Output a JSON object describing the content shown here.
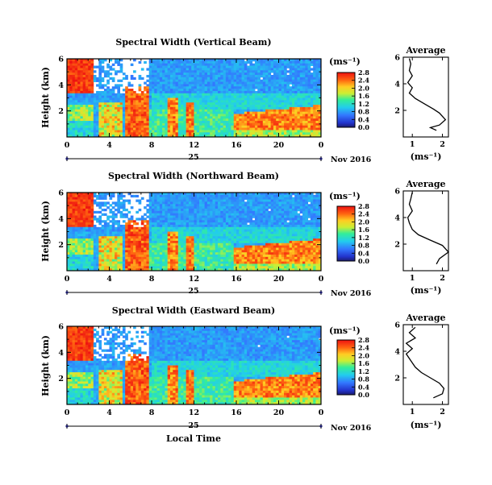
{
  "figure": {
    "xlabel": "Local Time",
    "date_label": "Nov 2016",
    "day_label": "25",
    "colorbar_unit": "(ms⁻¹)",
    "avg_title": "Average",
    "avg_xlabel": "(ms⁻¹)"
  },
  "chart_data": [
    {
      "type": "heatmap",
      "title": "Spectral Width (Vertical Beam)",
      "ylabel": "Height (km)",
      "xlim": [
        0,
        24
      ],
      "ylim": [
        0,
        6
      ],
      "x_ticks": [
        "0",
        "4",
        "8",
        "12",
        "16",
        "20",
        "0"
      ],
      "y_ticks": [
        "2",
        "4",
        "6"
      ],
      "colorbar_ticks": [
        "0.0",
        "0.4",
        "0.8",
        "1.2",
        "1.6",
        "2.0",
        "2.4",
        "2.8"
      ],
      "colorbar_range": [
        0,
        2.8
      ],
      "average_profile": {
        "x_ticks": [
          "1",
          "2"
        ],
        "xlim": [
          0.7,
          2.2
        ],
        "y_ticks": [
          "2",
          "4",
          "6"
        ],
        "points": [
          [
            1.8,
            0.5
          ],
          [
            1.6,
            0.7
          ],
          [
            1.9,
            0.9
          ],
          [
            2.1,
            1.3
          ],
          [
            1.9,
            1.8
          ],
          [
            1.7,
            2.1
          ],
          [
            1.4,
            2.5
          ],
          [
            1.1,
            2.9
          ],
          [
            0.9,
            3.3
          ],
          [
            1.0,
            3.7
          ],
          [
            0.85,
            4.1
          ],
          [
            1.0,
            4.6
          ],
          [
            0.9,
            5.0
          ],
          [
            0.95,
            5.5
          ],
          [
            0.9,
            5.9
          ]
        ]
      }
    },
    {
      "type": "heatmap",
      "title": "Spectral Width (Northward Beam)",
      "ylabel": "Height (km)",
      "xlim": [
        0,
        24
      ],
      "ylim": [
        0,
        6
      ],
      "x_ticks": [
        "0",
        "4",
        "8",
        "12",
        "16",
        "20",
        "0"
      ],
      "y_ticks": [
        "2",
        "4",
        "6"
      ],
      "colorbar_ticks": [
        "0.0",
        "0.4",
        "0.8",
        "1.2",
        "1.6",
        "2.0",
        "2.4",
        "2.8"
      ],
      "colorbar_range": [
        0,
        2.8
      ],
      "average_profile": {
        "x_ticks": [
          "1",
          "2"
        ],
        "xlim": [
          0.7,
          2.2
        ],
        "y_ticks": [
          "2",
          "4",
          "6"
        ],
        "points": [
          [
            1.8,
            0.5
          ],
          [
            1.9,
            0.9
          ],
          [
            2.2,
            1.4
          ],
          [
            2.0,
            1.9
          ],
          [
            1.6,
            2.3
          ],
          [
            1.2,
            2.7
          ],
          [
            1.0,
            3.1
          ],
          [
            0.9,
            3.6
          ],
          [
            0.85,
            4.0
          ],
          [
            1.0,
            4.5
          ],
          [
            0.9,
            5.0
          ],
          [
            0.95,
            5.4
          ],
          [
            1.0,
            5.9
          ]
        ]
      }
    },
    {
      "type": "heatmap",
      "title": "Spectral Width (Eastward Beam)",
      "ylabel": "Height (km)",
      "xlim": [
        0,
        24
      ],
      "ylim": [
        0,
        6
      ],
      "x_ticks": [
        "0",
        "4",
        "8",
        "12",
        "16",
        "20",
        "0"
      ],
      "y_ticks": [
        "2",
        "4",
        "6"
      ],
      "colorbar_ticks": [
        "0.0",
        "0.4",
        "0.8",
        "1.2",
        "1.6",
        "2.0",
        "2.4",
        "2.8"
      ],
      "colorbar_range": [
        0,
        2.8
      ],
      "average_profile": {
        "x_ticks": [
          "1",
          "2"
        ],
        "xlim": [
          0.7,
          2.2
        ],
        "y_ticks": [
          "2",
          "4",
          "6"
        ],
        "points": [
          [
            1.7,
            0.5
          ],
          [
            2.0,
            0.8
          ],
          [
            2.05,
            1.2
          ],
          [
            1.9,
            1.6
          ],
          [
            1.6,
            2.0
          ],
          [
            1.3,
            2.4
          ],
          [
            1.1,
            2.8
          ],
          [
            0.95,
            3.3
          ],
          [
            0.8,
            3.8
          ],
          [
            1.0,
            4.2
          ],
          [
            0.8,
            4.6
          ],
          [
            1.1,
            5.0
          ],
          [
            0.9,
            5.4
          ],
          [
            1.1,
            5.8
          ]
        ]
      }
    }
  ]
}
